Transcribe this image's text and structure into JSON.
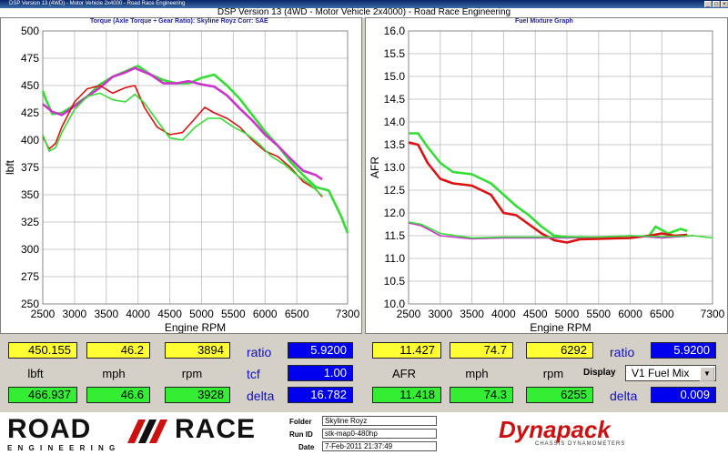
{
  "window": {
    "title": "DSP Version 13 (4WD) - Motor Vehicle 2x4000 - Road Race Engineering",
    "app_title": "DSP Version 13 (4WD - Motor Vehicle 2x4000) - Road Race Engineering"
  },
  "left_panel": {
    "title": "Torque (Axle Torque ÷ Gear Ratio): Skyline Royz      Corr: SAE"
  },
  "right_panel": {
    "title": "Fuel Mixture Graph"
  },
  "chart_data": [
    {
      "type": "line",
      "xlabel": "Engine RPM",
      "ylabel": "lbft",
      "xlim": [
        2500,
        7300
      ],
      "ylim": [
        250,
        500
      ],
      "xticks": [
        "2500",
        "3000",
        "3500",
        "4000",
        "4500",
        "5000",
        "5500",
        "6000",
        "6500",
        "7300"
      ],
      "yticks": [
        "250",
        "275",
        "300",
        "325",
        "350",
        "375",
        "400",
        "425",
        "450",
        "475",
        "500"
      ],
      "grid": true,
      "series": [
        {
          "color": "#33dd33",
          "x": [
            2500,
            2550,
            2650,
            2800,
            3000,
            3200,
            3400,
            3600,
            3800,
            4000,
            4200,
            4400,
            4600,
            4800,
            5000,
            5200,
            5400,
            5600,
            5800,
            6000,
            6200,
            6400,
            6600,
            6800,
            7000,
            7200,
            7300
          ],
          "y": [
            445,
            437,
            424,
            425,
            432,
            440,
            451,
            458,
            463,
            468,
            460,
            455,
            452,
            452,
            457,
            460,
            450,
            438,
            423,
            408,
            395,
            380,
            368,
            357,
            354,
            330,
            315
          ]
        },
        {
          "color": "#cc33cc",
          "x": [
            2500,
            2650,
            2800,
            3000,
            3200,
            3400,
            3600,
            3800,
            3950,
            4200,
            4400,
            4600,
            4800,
            5000,
            5200,
            5400,
            5600,
            5800,
            6000,
            6200,
            6400,
            6600,
            6800,
            6900
          ],
          "y": [
            433,
            426,
            423,
            431,
            440,
            448,
            458,
            462,
            466,
            460,
            452,
            452,
            454,
            451,
            449,
            441,
            429,
            418,
            405,
            395,
            383,
            372,
            368,
            364
          ]
        },
        {
          "color": "#dd1111",
          "x": [
            2500,
            2600,
            2700,
            2800,
            3000,
            3200,
            3400,
            3600,
            3800,
            3950,
            4100,
            4300,
            4500,
            4700,
            4900,
            5050,
            5200,
            5400,
            5600,
            5800,
            6000,
            6200,
            6400,
            6600,
            6800,
            6900
          ],
          "y": [
            403,
            392,
            397,
            412,
            435,
            447,
            450,
            443,
            448,
            450,
            430,
            412,
            405,
            407,
            420,
            430,
            425,
            420,
            412,
            400,
            390,
            385,
            375,
            362,
            355,
            348
          ]
        },
        {
          "color": "#33dd33",
          "x": [
            2500,
            2600,
            2700,
            2800,
            3000,
            3200,
            3400,
            3600,
            3800,
            3950,
            4100,
            4300,
            4500,
            4700,
            4900,
            5100,
            5300,
            5500,
            5700,
            5900,
            6100,
            6300,
            6500,
            6700,
            6900
          ],
          "y": [
            405,
            390,
            393,
            407,
            428,
            440,
            443,
            437,
            435,
            442,
            434,
            418,
            402,
            400,
            412,
            420,
            420,
            412,
            406,
            397,
            385,
            378,
            368,
            360,
            349
          ]
        }
      ]
    },
    {
      "type": "line",
      "xlabel": "Engine RPM",
      "ylabel": "AFR",
      "xlim": [
        2500,
        7300
      ],
      "ylim": [
        10.0,
        16.0
      ],
      "xticks": [
        "2500",
        "3000",
        "3500",
        "4000",
        "4500",
        "5000",
        "5500",
        "6000",
        "6500",
        "7300"
      ],
      "yticks": [
        "10.0",
        "10.5",
        "11.0",
        "11.5",
        "12.0",
        "12.5",
        "13.0",
        "13.5",
        "14.0",
        "14.5",
        "15.0",
        "15.5",
        "16.0"
      ],
      "grid": true,
      "series": [
        {
          "color": "#33dd33",
          "x": [
            2500,
            2650,
            2800,
            3000,
            3200,
            3500,
            3800,
            4000,
            4200,
            4400,
            4600,
            4800,
            5000,
            5500,
            6000,
            6300,
            6400,
            6600,
            6800,
            6900
          ],
          "y": [
            13.75,
            13.75,
            13.45,
            13.1,
            12.9,
            12.85,
            12.65,
            12.4,
            12.15,
            11.95,
            11.7,
            11.5,
            11.47,
            11.45,
            11.45,
            11.5,
            11.7,
            11.55,
            11.65,
            11.6
          ]
        },
        {
          "color": "#dd1111",
          "x": [
            2500,
            2650,
            2800,
            3000,
            3200,
            3500,
            3800,
            4000,
            4200,
            4400,
            4600,
            4800,
            5000,
            5200,
            5500,
            6000,
            6300,
            6500,
            6700,
            6900
          ],
          "y": [
            13.55,
            13.5,
            13.1,
            12.75,
            12.65,
            12.6,
            12.4,
            12.0,
            11.95,
            11.75,
            11.55,
            11.4,
            11.35,
            11.42,
            11.43,
            11.45,
            11.5,
            11.55,
            11.5,
            11.52
          ]
        },
        {
          "color": "#cc33cc",
          "x": [
            2500,
            2700,
            3000,
            3500,
            4000,
            4500,
            5000,
            5500,
            6000,
            6500,
            7000
          ],
          "y": [
            11.78,
            11.72,
            11.5,
            11.43,
            11.45,
            11.45,
            11.45,
            11.47,
            11.5,
            11.45,
            11.5
          ]
        },
        {
          "color": "#33dd33",
          "x": [
            2500,
            2700,
            3000,
            3500,
            4000,
            4500,
            5000,
            5500,
            6000,
            6500,
            7000,
            7300
          ],
          "y": [
            11.8,
            11.75,
            11.55,
            11.45,
            11.47,
            11.47,
            11.47,
            11.47,
            11.5,
            11.48,
            11.5,
            11.45
          ]
        }
      ]
    }
  ],
  "left_readouts": {
    "top": [
      "450.155",
      "46.2",
      "3894"
    ],
    "labels": [
      "lbft",
      "mph",
      "rpm"
    ],
    "bottom": [
      "466.937",
      "46.6",
      "3928"
    ],
    "side_labels": [
      "ratio",
      "tcf",
      "delta"
    ],
    "side_values": [
      "5.9200",
      "1.00",
      "16.782"
    ]
  },
  "right_readouts": {
    "top": [
      "11.427",
      "74.7",
      "6292"
    ],
    "labels": [
      "AFR",
      "mph",
      "rpm"
    ],
    "bottom": [
      "11.418",
      "74.3",
      "6255"
    ],
    "ratio_label": "ratio",
    "ratio_value": "5.9200",
    "display_label": "Display",
    "display_value": "V1 Fuel Mix",
    "delta_label": "delta",
    "delta_value": "0.009"
  },
  "footer": {
    "logo_top": "ROAD",
    "logo_right": "RACE",
    "logo_bottom": "E N G I N E E R I N G",
    "folder_label": "Folder",
    "folder_value": "Skyline Royz",
    "runid_label": "Run ID",
    "runid_value": "stk-map0-480hp",
    "date_label": "Date",
    "date_value": "7-Feb-2011 21:37:49",
    "brand": "Dynapack",
    "brand_sub": "CHASSIS DYNAMOMETERS"
  },
  "colors": {
    "yellow": "#ffff33",
    "green": "#33ee33",
    "blue": "#0000ee",
    "label_blue": "#1010c0"
  }
}
